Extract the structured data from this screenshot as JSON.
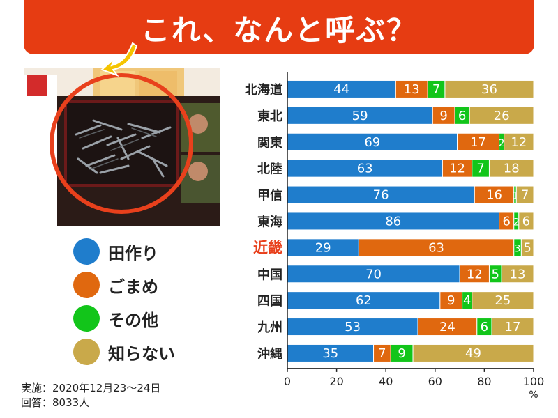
{
  "header": {
    "title": "これ、なんと呼ぶ？"
  },
  "photo": {
    "icon": "niboshi-tazukuri-photo",
    "accent_circle": "#e8401c",
    "arrow": "#f5c400"
  },
  "legend": {
    "items": [
      {
        "label": "田作り",
        "color": "#1f7dcc"
      },
      {
        "label": "ごまめ",
        "color": "#e0680f"
      },
      {
        "label": "その他",
        "color": "#12c51a"
      },
      {
        "label": "知らない",
        "color": "#c9a94a"
      }
    ]
  },
  "notes": {
    "survey_date": "実施：2020年12月23～24日",
    "respondents": "回答：8033人"
  },
  "chart_data": {
    "type": "bar",
    "orientation": "horizontal",
    "stacked": true,
    "categories": [
      "北海道",
      "東北",
      "関東",
      "北陸",
      "甲信",
      "東海",
      "近畿",
      "中国",
      "四国",
      "九州",
      "沖縄"
    ],
    "highlight_category": "近畿",
    "highlight_color": "#e8401c",
    "series": [
      {
        "name": "田作り",
        "color": "#1f7dcc",
        "values": [
          44,
          59,
          69,
          63,
          76,
          86,
          29,
          70,
          62,
          53,
          35
        ]
      },
      {
        "name": "ごまめ",
        "color": "#e0680f",
        "values": [
          13,
          9,
          17,
          12,
          16,
          6,
          63,
          12,
          9,
          24,
          7
        ]
      },
      {
        "name": "その他",
        "color": "#12c51a",
        "values": [
          7,
          6,
          2,
          7,
          1,
          2,
          3,
          5,
          4,
          6,
          9
        ]
      },
      {
        "name": "知らない",
        "color": "#c9a94a",
        "values": [
          36,
          26,
          12,
          18,
          7,
          6,
          5,
          13,
          25,
          17,
          49
        ]
      }
    ],
    "xlim": [
      0,
      100
    ],
    "xticks": [
      "0",
      "20",
      "40",
      "60",
      "80",
      "100"
    ],
    "xunit": "%",
    "grid": false
  }
}
